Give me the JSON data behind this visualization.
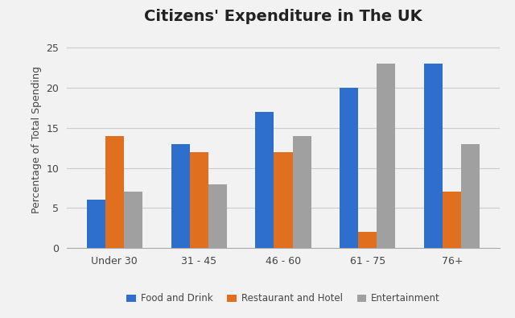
{
  "title": "Citizens' Expenditure in The UK",
  "ylabel": "Percentage of Total Spending",
  "categories": [
    "Under 30",
    "31 - 45",
    "46 - 60",
    "61 - 75",
    "76+"
  ],
  "series": {
    "Food and Drink": [
      6,
      13,
      17,
      20,
      23
    ],
    "Restaurant and Hotel": [
      14,
      12,
      12,
      2,
      7
    ],
    "Entertainment": [
      7,
      8,
      14,
      23,
      13
    ]
  },
  "colors": {
    "Food and Drink": "#2e6fce",
    "Restaurant and Hotel": "#e07020",
    "Entertainment": "#a0a0a0"
  },
  "ylim": [
    0,
    27
  ],
  "yticks": [
    0,
    5,
    10,
    15,
    20,
    25
  ],
  "bar_width": 0.22,
  "legend_labels": [
    "Food and Drink",
    "Restaurant and Hotel",
    "Entertainment"
  ],
  "background_color": "#f2f2f2",
  "plot_bg_color": "#f2f2f2",
  "grid_color": "#cccccc",
  "title_fontsize": 14,
  "label_fontsize": 9,
  "tick_fontsize": 9,
  "legend_fontsize": 8.5
}
